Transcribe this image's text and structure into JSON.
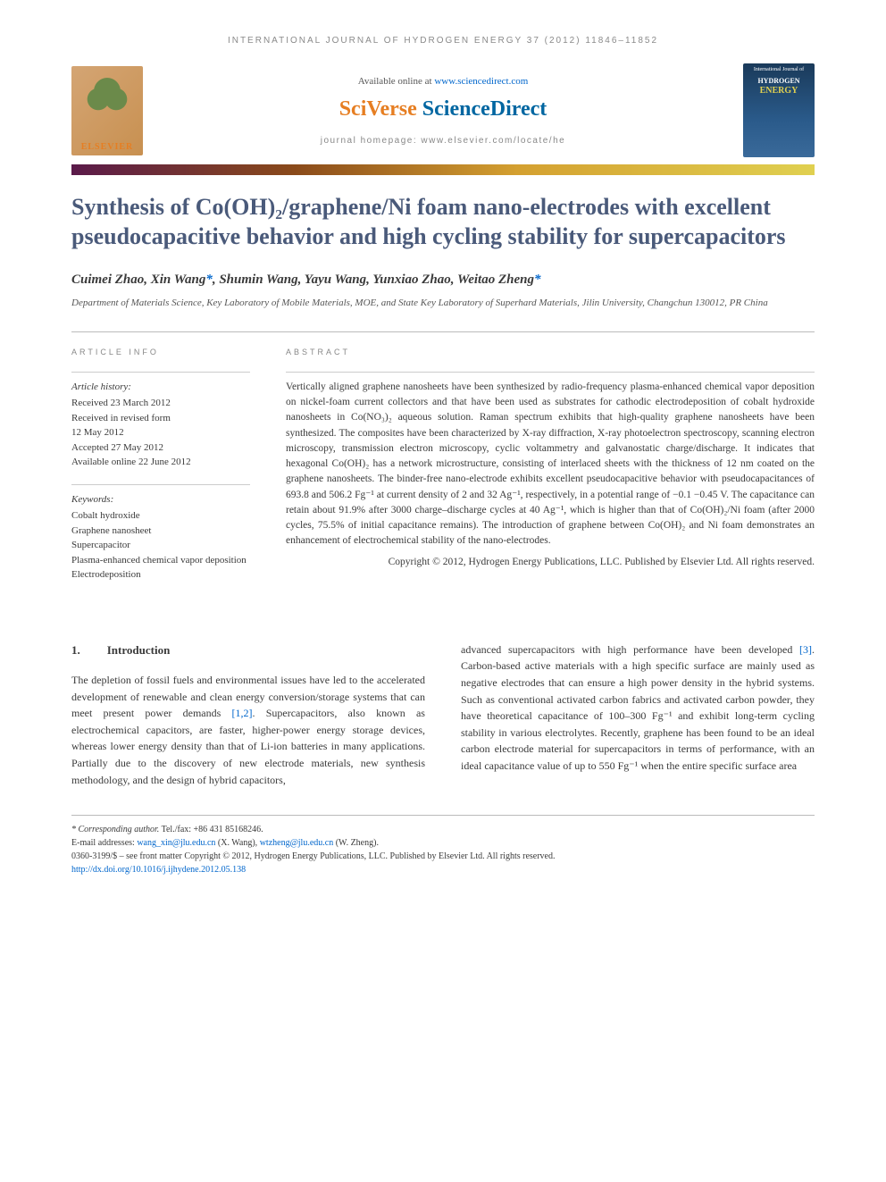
{
  "journal_header": "INTERNATIONAL JOURNAL OF HYDROGEN ENERGY 37 (2012) 11846–11852",
  "available_prefix": "Available online at ",
  "available_url": "www.sciencedirect.com",
  "sciverse_prefix": "SciVerse",
  "sciverse_suffix": " ScienceDirect",
  "homepage": "journal homepage: www.elsevier.com/locate/he",
  "elsevier_label": "ELSEVIER",
  "cover_line1": "International Journal of",
  "cover_line2": "HYDROGEN",
  "cover_line3": "ENERGY",
  "title": "Synthesis of Co(OH)₂/graphene/Ni foam nano-electrodes with excellent pseudocapacitive behavior and high cycling stability for supercapacitors",
  "authors": "Cuimei Zhao, Xin Wang",
  "authors_corr": "*",
  "authors_rest": ", Shumin Wang, Yayu Wang, Yunxiao Zhao, Weitao Zheng",
  "authors_corr2": "*",
  "affiliation": "Department of Materials Science, Key Laboratory of Mobile Materials, MOE, and State Key Laboratory of Superhard Materials, Jilin University, Changchun 130012, PR China",
  "info_heading": "ARTICLE INFO",
  "abstract_heading": "ABSTRACT",
  "history_label": "Article history:",
  "history": {
    "received": "Received 23 March 2012",
    "revised1": "Received in revised form",
    "revised2": "12 May 2012",
    "accepted": "Accepted 27 May 2012",
    "online": "Available online 22 June 2012"
  },
  "keywords_label": "Keywords:",
  "keywords": [
    "Cobalt hydroxide",
    "Graphene nanosheet",
    "Supercapacitor",
    "Plasma-enhanced chemical vapor deposition",
    "Electrodeposition"
  ],
  "abstract_text": "Vertically aligned graphene nanosheets have been synthesized by radio-frequency plasma-enhanced chemical vapor deposition on nickel-foam current collectors and that have been used as substrates for cathodic electrodeposition of cobalt hydroxide nanosheets in Co(NO₃)₂ aqueous solution. Raman spectrum exhibits that high-quality graphene nanosheets have been synthesized. The composites have been characterized by X-ray diffraction, X-ray photoelectron spectroscopy, scanning electron microscopy, transmission electron microscopy, cyclic voltammetry and galvanostatic charge/discharge. It indicates that hexagonal Co(OH)₂ has a network microstructure, consisting of interlaced sheets with the thickness of 12 nm coated on the graphene nanosheets. The binder-free nano-electrode exhibits excellent pseudocapacitive behavior with pseudocapacitances of 693.8 and 506.2 Fg⁻¹ at current density of 2 and 32 Ag⁻¹, respectively, in a potential range of −0.1 −0.45 V. The capacitance can retain about 91.9% after 3000 charge–discharge cycles at 40 Ag⁻¹, which is higher than that of Co(OH)₂/Ni foam (after 2000 cycles, 75.5% of initial capacitance remains). The introduction of graphene between Co(OH)₂ and Ni foam demonstrates an enhancement of electrochemical stability of the nano-electrodes.",
  "abstract_copyright": "Copyright © 2012, Hydrogen Energy Publications, LLC. Published by Elsevier Ltd. All rights reserved.",
  "section_num": "1.",
  "section_title": "Introduction",
  "intro_col1_a": "The depletion of fossil fuels and environmental issues have led to the accelerated development of renewable and clean energy conversion/storage systems that can meet present power demands ",
  "intro_ref1": "[1,2]",
  "intro_col1_b": ". Supercapacitors, also known as electrochemical capacitors, are faster, higher-power energy storage devices, whereas lower energy density than that of Li-ion batteries in many applications. Partially due to the discovery of new electrode materials, new synthesis methodology, and the design of hybrid capacitors,",
  "intro_col2_a": "advanced supercapacitors with high performance have been developed ",
  "intro_ref2": "[3]",
  "intro_col2_b": ". Carbon-based active materials with a high specific surface are mainly used as negative electrodes that can ensure a high power density in the hybrid systems. Such as conventional activated carbon fabrics and activated carbon powder, they have theoretical capacitance of 100–300 Fg⁻¹ and exhibit long-term cycling stability in various electrolytes. Recently, graphene has been found to be an ideal carbon electrode material for supercapacitors in terms of performance, with an ideal capacitance value of up to 550 Fg⁻¹ when the entire specific surface area",
  "corr_label": "* Corresponding author.",
  "corr_contact": " Tel./fax: +86 431 85168246.",
  "email_label": "E-mail addresses: ",
  "email1": "wang_xin@jlu.edu.cn",
  "email1_name": " (X. Wang), ",
  "email2": "wtzheng@jlu.edu.cn",
  "email2_name": " (W. Zheng).",
  "issn_line": "0360-3199/$ – see front matter Copyright © 2012, Hydrogen Energy Publications, LLC. Published by Elsevier Ltd. All rights reserved.",
  "doi": "http://dx.doi.org/10.1016/j.ijhydene.2012.05.138"
}
